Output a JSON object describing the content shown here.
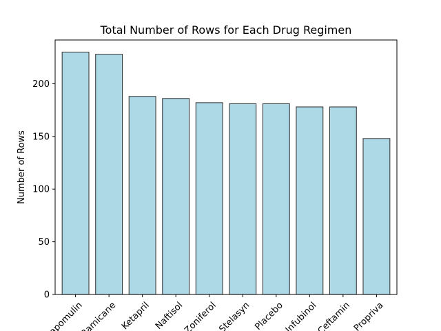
{
  "chart_data": {
    "type": "bar",
    "title": "Total Number of Rows for Each Drug Regimen",
    "xlabel": "",
    "ylabel": "Number of Rows",
    "categories": [
      "Capomulin",
      "Ramicane",
      "Ketapril",
      "Naftisol",
      "Zoniferol",
      "Stelasyn",
      "Placebo",
      "Infubinol",
      "Ceftamin",
      "Propriva"
    ],
    "values": [
      230,
      228,
      188,
      186,
      182,
      181,
      181,
      178,
      178,
      148
    ],
    "yticks": [
      0,
      50,
      100,
      150,
      200
    ],
    "ylim": [
      0,
      241.5
    ],
    "bar_color": "#add8e6",
    "edge_color": "#3a3a3a",
    "grid": false,
    "xtick_rotation": 45
  }
}
